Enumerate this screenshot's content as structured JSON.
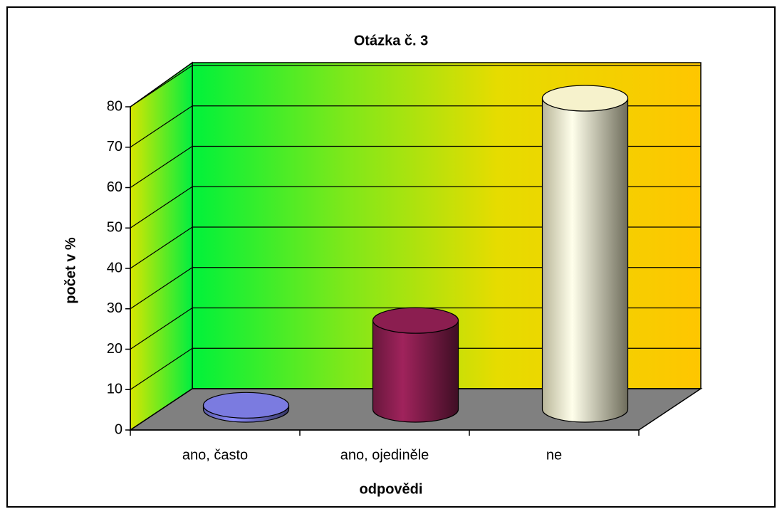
{
  "chart_data": {
    "type": "bar3d",
    "title": "Otázka č. 3",
    "x_label": "odpovědi",
    "y_label": "počet v %",
    "categories": [
      "ano, často",
      "ano, ojediněle",
      "ne"
    ],
    "values": [
      1,
      22,
      77
    ],
    "colors": [
      "#7b7be0",
      "#8b1e50",
      "#f6f2cc"
    ],
    "ylim": [
      0,
      80
    ],
    "yticks": [
      0,
      10,
      20,
      30,
      40,
      50,
      60,
      70,
      80
    ],
    "grid": true
  }
}
